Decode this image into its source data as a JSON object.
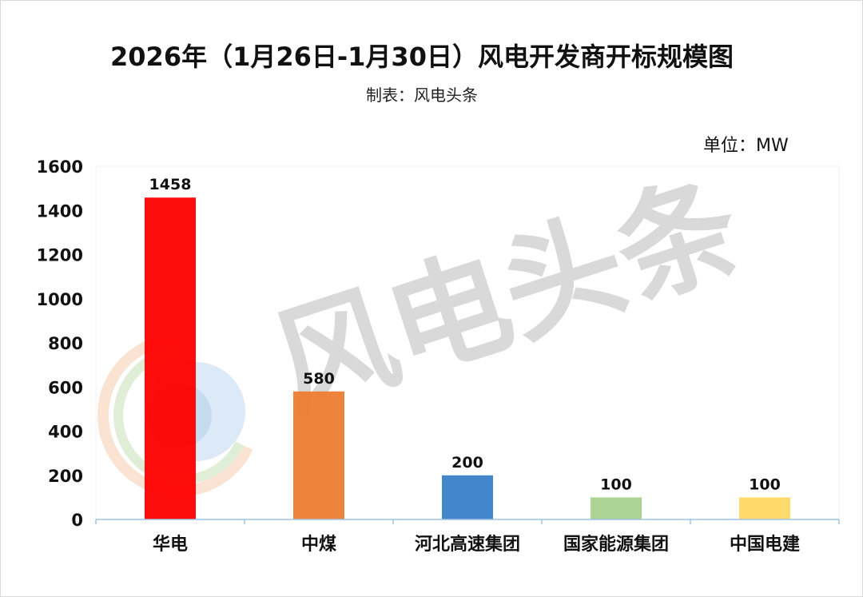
{
  "header": {
    "title": "2026年（1月26日-1月30日）风电开发商开标规模图",
    "subtitle": "制表：风电头条",
    "unit": "单位：MW"
  },
  "watermark": {
    "text": "风电头条"
  },
  "colors": {
    "axis": "#9dc3e6",
    "gridline": "#f2f2f2"
  },
  "chart_data": {
    "type": "bar",
    "categories": [
      "华电",
      "中煤",
      "河北高速集团",
      "国家能源集团",
      "中国电建"
    ],
    "values": [
      1458,
      580,
      200,
      100,
      100
    ],
    "bar_colors": [
      "#ff0000",
      "#ed7d31",
      "#3a80c8",
      "#a9d18e",
      "#ffd966"
    ],
    "ylim": [
      0,
      1600
    ],
    "yticks": [
      0,
      200,
      400,
      600,
      800,
      1000,
      1200,
      1400,
      1600
    ],
    "data_labels": [
      "1458",
      "580",
      "200",
      "100",
      "100"
    ],
    "grid": false,
    "legend": "none"
  }
}
